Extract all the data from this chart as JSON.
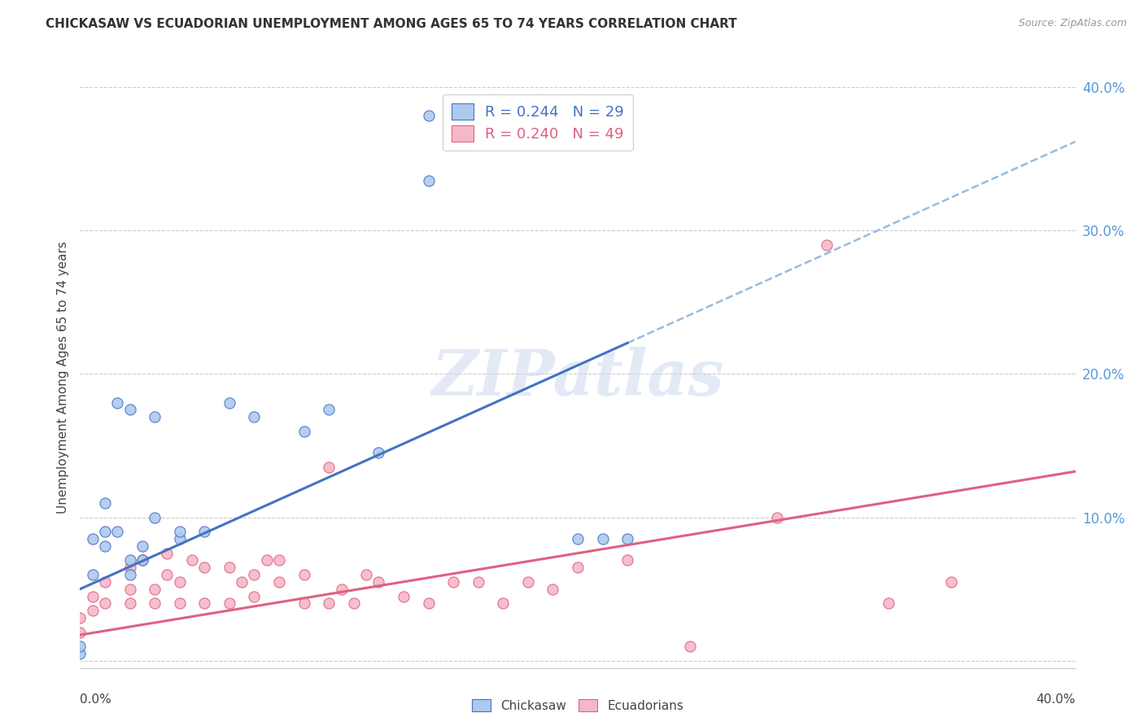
{
  "title": "CHICKASAW VS ECUADORIAN UNEMPLOYMENT AMONG AGES 65 TO 74 YEARS CORRELATION CHART",
  "source": "Source: ZipAtlas.com",
  "ylabel": "Unemployment Among Ages 65 to 74 years",
  "xlim": [
    0.0,
    0.4
  ],
  "ylim": [
    -0.005,
    0.4
  ],
  "yticks": [
    0.0,
    0.1,
    0.2,
    0.3,
    0.4
  ],
  "ytick_labels": [
    "",
    "10.0%",
    "20.0%",
    "30.0%",
    "40.0%"
  ],
  "xtick_positions": [
    0.0,
    0.08,
    0.16,
    0.24,
    0.32,
    0.4
  ],
  "chickasaw_fill_color": "#aec9ee",
  "chickasaw_edge_color": "#4472c4",
  "ecuadorian_fill_color": "#f4b8c8",
  "ecuadorian_edge_color": "#e06080",
  "chickasaw_line_color": "#4472c4",
  "ecuadorian_line_color": "#e06080",
  "dashed_line_color": "#99bbdd",
  "chickasaw_R": 0.244,
  "chickasaw_N": 29,
  "ecuadorian_R": 0.24,
  "ecuadorian_N": 49,
  "watermark": "ZIPatlas",
  "chickasaw_intercept": 0.05,
  "chickasaw_slope": 0.78,
  "ecuadorian_intercept": 0.018,
  "ecuadorian_slope": 0.285,
  "chickasaw_x": [
    0.0,
    0.0,
    0.005,
    0.005,
    0.01,
    0.01,
    0.01,
    0.015,
    0.015,
    0.02,
    0.02,
    0.02,
    0.025,
    0.025,
    0.03,
    0.03,
    0.04,
    0.04,
    0.05,
    0.06,
    0.07,
    0.09,
    0.1,
    0.12,
    0.14,
    0.14,
    0.2,
    0.21,
    0.22
  ],
  "chickasaw_y": [
    0.005,
    0.01,
    0.06,
    0.085,
    0.08,
    0.09,
    0.11,
    0.09,
    0.18,
    0.06,
    0.07,
    0.175,
    0.07,
    0.08,
    0.1,
    0.17,
    0.085,
    0.09,
    0.09,
    0.18,
    0.17,
    0.16,
    0.175,
    0.145,
    0.38,
    0.335,
    0.085,
    0.085,
    0.085
  ],
  "ecuadorian_x": [
    0.0,
    0.0,
    0.005,
    0.005,
    0.01,
    0.01,
    0.02,
    0.02,
    0.02,
    0.025,
    0.03,
    0.03,
    0.035,
    0.035,
    0.04,
    0.04,
    0.045,
    0.05,
    0.05,
    0.06,
    0.06,
    0.065,
    0.07,
    0.07,
    0.075,
    0.08,
    0.08,
    0.09,
    0.09,
    0.1,
    0.1,
    0.105,
    0.11,
    0.115,
    0.12,
    0.13,
    0.14,
    0.15,
    0.16,
    0.17,
    0.18,
    0.19,
    0.2,
    0.22,
    0.245,
    0.28,
    0.3,
    0.325,
    0.35
  ],
  "ecuadorian_y": [
    0.02,
    0.03,
    0.035,
    0.045,
    0.04,
    0.055,
    0.04,
    0.05,
    0.065,
    0.07,
    0.04,
    0.05,
    0.06,
    0.075,
    0.04,
    0.055,
    0.07,
    0.04,
    0.065,
    0.04,
    0.065,
    0.055,
    0.045,
    0.06,
    0.07,
    0.055,
    0.07,
    0.04,
    0.06,
    0.04,
    0.135,
    0.05,
    0.04,
    0.06,
    0.055,
    0.045,
    0.04,
    0.055,
    0.055,
    0.04,
    0.055,
    0.05,
    0.065,
    0.07,
    0.01,
    0.1,
    0.29,
    0.04,
    0.055
  ]
}
